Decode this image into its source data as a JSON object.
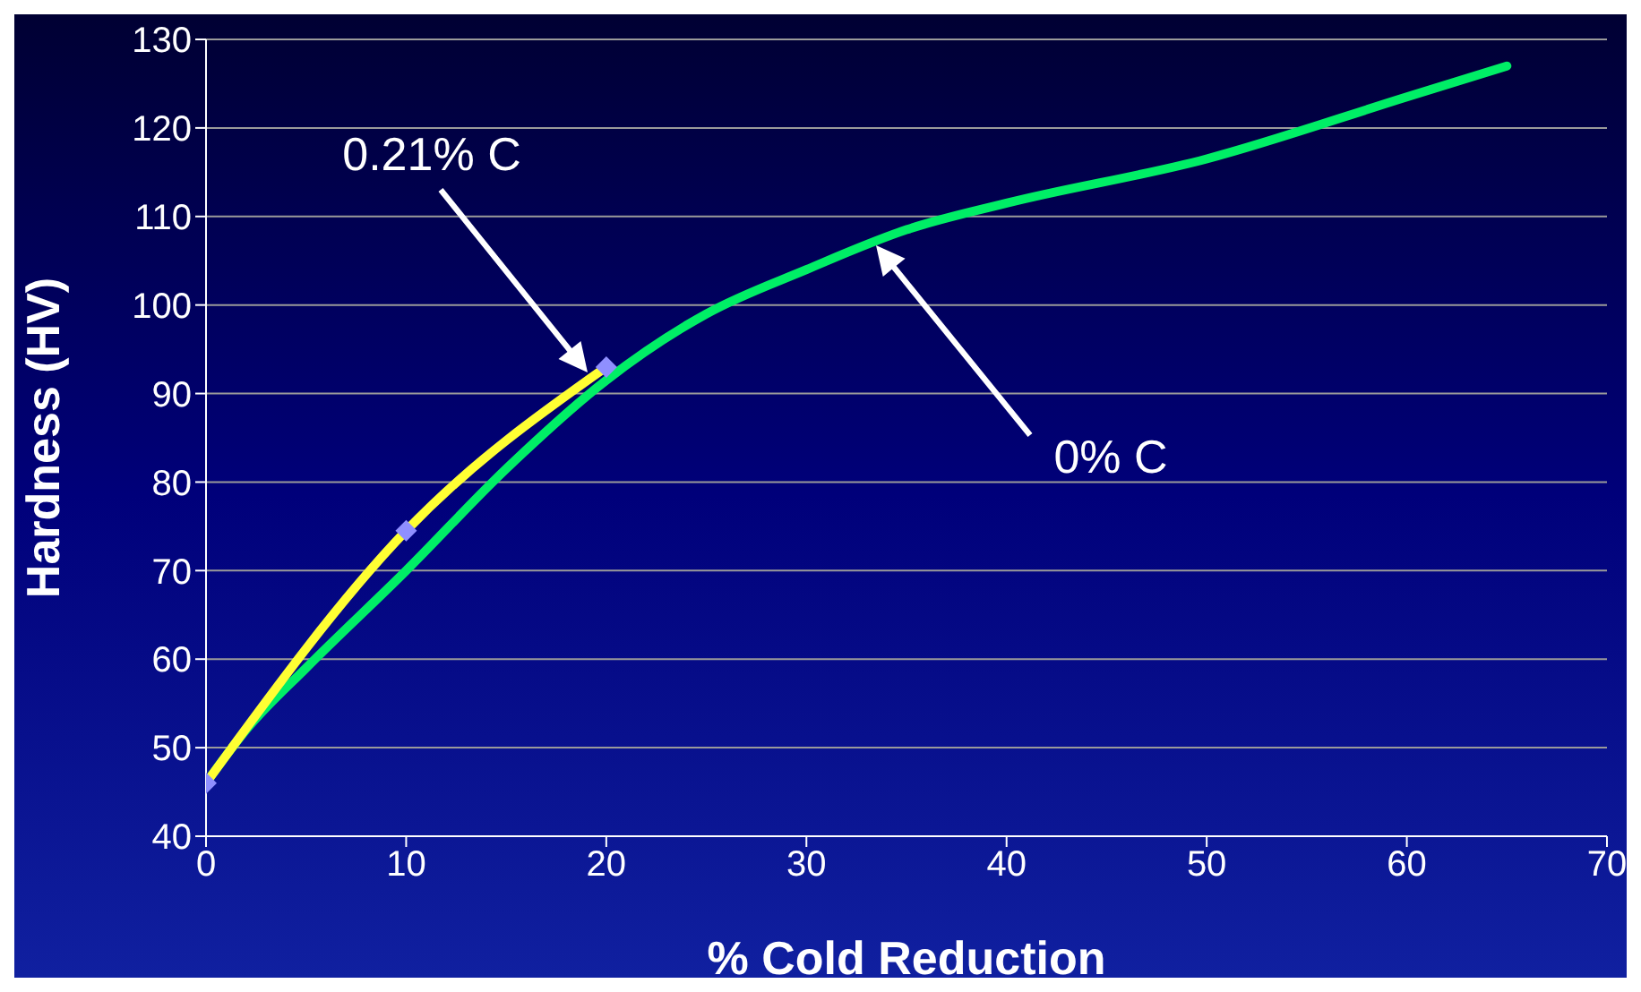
{
  "chart_data": {
    "type": "line",
    "xlabel": "% Cold Reduction",
    "ylabel": "Hardness (HV)",
    "xlim": [
      0,
      70
    ],
    "xticks": [
      0,
      10,
      20,
      30,
      40,
      50,
      60,
      70
    ],
    "ylim": [
      40,
      130
    ],
    "yticks": [
      40,
      50,
      60,
      70,
      80,
      90,
      100,
      110,
      120,
      130
    ],
    "grid": "y",
    "series": [
      {
        "color": "#00ee66",
        "marker": "none",
        "x": [
          0,
          2,
          5,
          10,
          15,
          20,
          25,
          30,
          35,
          40,
          50,
          60,
          65
        ],
        "values": [
          46,
          52,
          59,
          70,
          81.5,
          91.5,
          99,
          104,
          108.5,
          111.5,
          116.5,
          123.5,
          127
        ]
      },
      {
        "color": "#ffff33",
        "marker": "diamond",
        "x": [
          0,
          10,
          20
        ],
        "values": [
          46,
          74.5,
          93
        ]
      }
    ],
    "annotations": [
      "0.21% C",
      "0% C"
    ]
  }
}
